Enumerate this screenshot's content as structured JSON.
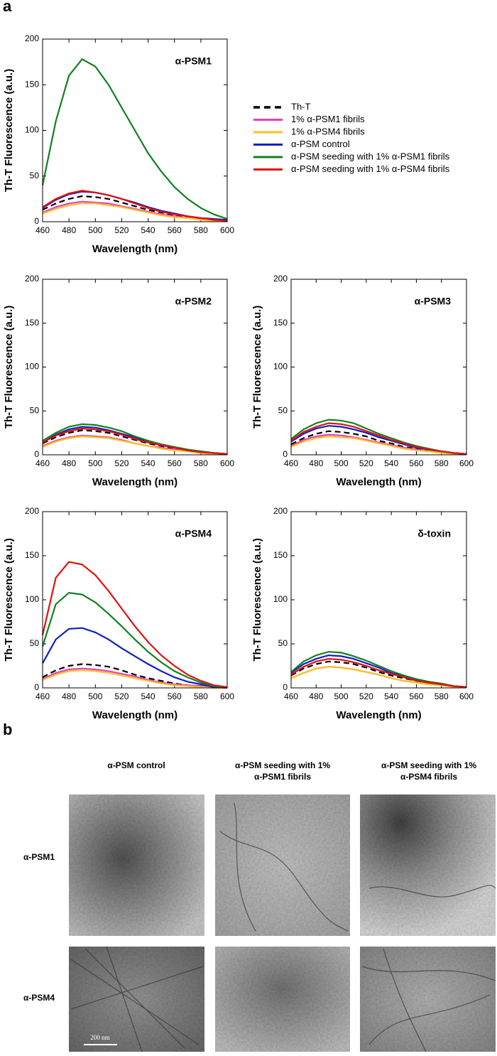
{
  "panel_labels": [
    "a",
    "b"
  ],
  "chart_data": [
    {
      "type": "line",
      "title": "α-PSM1",
      "xlabel": "Wavelength (nm)",
      "ylabel": "Th-T Fluorescence (a.u.)",
      "x": [
        460,
        470,
        480,
        490,
        500,
        510,
        520,
        530,
        540,
        550,
        560,
        570,
        580,
        590,
        600
      ],
      "xlim": [
        460,
        600
      ],
      "ylim": [
        0,
        200
      ],
      "xticks": [
        460,
        480,
        500,
        520,
        540,
        560,
        580,
        600
      ],
      "yticks": [
        0,
        50,
        100,
        150,
        200
      ],
      "series": [
        {
          "name": "Th-T",
          "color": "#000000",
          "dash": true,
          "values": [
            13,
            20,
            25,
            28,
            27,
            25,
            21,
            17,
            13,
            10,
            7,
            5,
            3,
            2,
            1
          ]
        },
        {
          "name": "1% α-PSM1  fibrils",
          "color": "#e040c0",
          "dash": false,
          "values": [
            10,
            16,
            20,
            22,
            21,
            20,
            17,
            14,
            11,
            8,
            6,
            4,
            3,
            2,
            1
          ]
        },
        {
          "name": "1% α-PSM4  fibrils",
          "color": "#ffc020",
          "dash": false,
          "values": [
            9,
            14,
            18,
            20,
            20,
            18,
            16,
            13,
            10,
            7,
            5,
            4,
            2,
            1,
            1
          ]
        },
        {
          "name": "α-PSM control",
          "color": "#1020c0",
          "dash": false,
          "values": [
            15,
            24,
            30,
            33,
            32,
            29,
            25,
            21,
            16,
            12,
            9,
            6,
            4,
            3,
            2
          ]
        },
        {
          "name": "α-PSM seeding with 1% α-PSM1  fibrils",
          "color": "#108020",
          "dash": false,
          "values": [
            40,
            110,
            160,
            178,
            170,
            150,
            125,
            100,
            75,
            55,
            38,
            25,
            15,
            8,
            3
          ]
        },
        {
          "name": "α-PSM seeding with 1% α-PSM4  fibrils",
          "color": "#e01010",
          "dash": false,
          "values": [
            16,
            25,
            31,
            34,
            32,
            29,
            25,
            20,
            15,
            11,
            8,
            6,
            4,
            2,
            1
          ]
        }
      ]
    },
    {
      "type": "line",
      "title": "α-PSM2",
      "xlabel": "Wavelength (nm)",
      "ylabel": "Th-T Fluorescence (a.u.)",
      "x": [
        460,
        470,
        480,
        490,
        500,
        510,
        520,
        530,
        540,
        550,
        560,
        570,
        580,
        590,
        600
      ],
      "xlim": [
        460,
        600
      ],
      "ylim": [
        0,
        200
      ],
      "xticks": [
        460,
        480,
        500,
        520,
        540,
        560,
        580,
        600
      ],
      "yticks": [
        0,
        50,
        100,
        150,
        200
      ],
      "series": [
        {
          "color": "#000000",
          "dash": true,
          "values": [
            13,
            20,
            25,
            28,
            27,
            25,
            21,
            17,
            13,
            10,
            7,
            5,
            3,
            2,
            1
          ]
        },
        {
          "color": "#e040c0",
          "dash": false,
          "values": [
            10,
            16,
            20,
            22,
            21,
            20,
            17,
            13,
            10,
            8,
            6,
            4,
            2,
            1,
            1
          ]
        },
        {
          "color": "#ffc020",
          "dash": false,
          "values": [
            9,
            15,
            19,
            21,
            20,
            19,
            16,
            13,
            10,
            7,
            5,
            4,
            2,
            1,
            1
          ]
        },
        {
          "color": "#1020c0",
          "dash": false,
          "values": [
            14,
            23,
            29,
            32,
            31,
            28,
            24,
            20,
            15,
            11,
            8,
            5,
            4,
            2,
            1
          ]
        },
        {
          "color": "#108020",
          "dash": false,
          "values": [
            16,
            25,
            32,
            35,
            34,
            31,
            27,
            21,
            16,
            12,
            9,
            6,
            4,
            2,
            1
          ]
        },
        {
          "color": "#e01010",
          "dash": false,
          "values": [
            14,
            22,
            27,
            30,
            29,
            27,
            23,
            18,
            14,
            11,
            8,
            5,
            3,
            2,
            1
          ]
        }
      ]
    },
    {
      "type": "line",
      "title": "α-PSM3",
      "xlabel": "Wavelength (nm)",
      "ylabel": "Th-T Fluorescence (a.u.)",
      "x": [
        460,
        470,
        480,
        490,
        500,
        510,
        520,
        530,
        540,
        550,
        560,
        570,
        580,
        590,
        600
      ],
      "xlim": [
        460,
        600
      ],
      "ylim": [
        0,
        200
      ],
      "xticks": [
        460,
        480,
        500,
        520,
        540,
        560,
        580,
        600
      ],
      "yticks": [
        0,
        50,
        100,
        150,
        200
      ],
      "series": [
        {
          "color": "#000000",
          "dash": true,
          "values": [
            12,
            19,
            24,
            27,
            26,
            24,
            21,
            16,
            13,
            9,
            7,
            5,
            3,
            2,
            1
          ]
        },
        {
          "color": "#e040c0",
          "dash": false,
          "values": [
            10,
            17,
            21,
            23,
            22,
            20,
            17,
            14,
            11,
            8,
            6,
            4,
            3,
            1,
            1
          ]
        },
        {
          "color": "#ffc020",
          "dash": false,
          "values": [
            9,
            15,
            19,
            21,
            20,
            19,
            16,
            13,
            10,
            7,
            5,
            4,
            2,
            1,
            1
          ]
        },
        {
          "color": "#1020c0",
          "dash": false,
          "values": [
            15,
            24,
            30,
            33,
            32,
            29,
            25,
            20,
            16,
            12,
            8,
            6,
            4,
            2,
            1
          ]
        },
        {
          "color": "#108020",
          "dash": false,
          "values": [
            18,
            29,
            36,
            40,
            39,
            36,
            30,
            24,
            19,
            14,
            10,
            7,
            4,
            2,
            1
          ]
        },
        {
          "color": "#e01010",
          "dash": false,
          "values": [
            16,
            26,
            32,
            36,
            35,
            32,
            27,
            22,
            17,
            13,
            9,
            6,
            4,
            2,
            1
          ]
        }
      ]
    },
    {
      "type": "line",
      "title": "α-PSM4",
      "xlabel": "Wavelength (nm)",
      "ylabel": "Th-T Fluorescence (a.u.)",
      "x": [
        460,
        470,
        480,
        490,
        500,
        510,
        520,
        530,
        540,
        550,
        560,
        570,
        580,
        590,
        600
      ],
      "xlim": [
        460,
        600
      ],
      "ylim": [
        0,
        200
      ],
      "xticks": [
        460,
        480,
        500,
        520,
        540,
        560,
        580,
        600
      ],
      "yticks": [
        0,
        50,
        100,
        150,
        200
      ],
      "series": [
        {
          "color": "#000000",
          "dash": true,
          "values": [
            12,
            20,
            25,
            27,
            26,
            24,
            20,
            15,
            11,
            8,
            5,
            3,
            2,
            1,
            0
          ]
        },
        {
          "color": "#e040c0",
          "dash": false,
          "values": [
            10,
            17,
            21,
            22,
            21,
            19,
            16,
            13,
            9,
            6,
            4,
            3,
            2,
            1,
            0
          ]
        },
        {
          "color": "#ffc020",
          "dash": false,
          "values": [
            9,
            15,
            19,
            20,
            19,
            17,
            14,
            11,
            8,
            5,
            3,
            2,
            1,
            0,
            0
          ]
        },
        {
          "color": "#1020c0",
          "dash": false,
          "values": [
            28,
            55,
            67,
            68,
            63,
            55,
            45,
            36,
            27,
            19,
            12,
            7,
            4,
            1,
            0
          ]
        },
        {
          "color": "#108020",
          "dash": false,
          "values": [
            47,
            95,
            108,
            106,
            97,
            84,
            70,
            55,
            41,
            29,
            19,
            12,
            6,
            2,
            0
          ]
        },
        {
          "color": "#e01010",
          "dash": false,
          "values": [
            60,
            125,
            143,
            140,
            128,
            110,
            90,
            70,
            52,
            37,
            25,
            15,
            8,
            3,
            1
          ]
        }
      ]
    },
    {
      "type": "line",
      "title": "δ-toxin",
      "xlabel": "Wavelength (nm)",
      "ylabel": "Th-T Fluorescence (a.u.)",
      "x": [
        460,
        470,
        480,
        490,
        500,
        510,
        520,
        530,
        540,
        550,
        560,
        570,
        580,
        590,
        600
      ],
      "xlim": [
        460,
        600
      ],
      "ylim": [
        0,
        200
      ],
      "xticks": [
        460,
        480,
        500,
        520,
        540,
        560,
        580,
        600
      ],
      "yticks": [
        0,
        50,
        100,
        150,
        200
      ],
      "series": [
        {
          "color": "#000000",
          "dash": true,
          "values": [
            14,
            22,
            27,
            30,
            29,
            27,
            23,
            18,
            14,
            11,
            8,
            5,
            3,
            2,
            1
          ]
        },
        {
          "color": "#e040c0",
          "dash": false,
          "values": [
            11,
            17,
            22,
            24,
            23,
            21,
            18,
            15,
            11,
            8,
            6,
            4,
            3,
            1,
            1
          ]
        },
        {
          "color": "#ffc020",
          "dash": false,
          "values": [
            11,
            17,
            22,
            24,
            23,
            21,
            18,
            15,
            11,
            8,
            6,
            4,
            3,
            1,
            1
          ]
        },
        {
          "color": "#1020c0",
          "dash": false,
          "values": [
            17,
            27,
            33,
            37,
            36,
            33,
            28,
            23,
            17,
            13,
            9,
            6,
            4,
            2,
            1
          ]
        },
        {
          "color": "#108020",
          "dash": false,
          "values": [
            18,
            30,
            37,
            41,
            40,
            36,
            31,
            25,
            19,
            14,
            10,
            7,
            5,
            2,
            1
          ]
        },
        {
          "color": "#e01010",
          "dash": false,
          "values": [
            15,
            24,
            30,
            33,
            32,
            29,
            25,
            20,
            16,
            12,
            8,
            6,
            4,
            2,
            1
          ]
        }
      ]
    }
  ],
  "micrographs": {
    "columns": [
      [
        "α-PSM control"
      ],
      [
        "α-PSM seeding with 1%",
        "α-PSM1  fibrils"
      ],
      [
        "α-PSM seeding with 1%",
        "α-PSM4  fibrils"
      ]
    ],
    "rows": [
      "α-PSM1",
      "α-PSM4"
    ],
    "scale_bar": "200 nm"
  }
}
